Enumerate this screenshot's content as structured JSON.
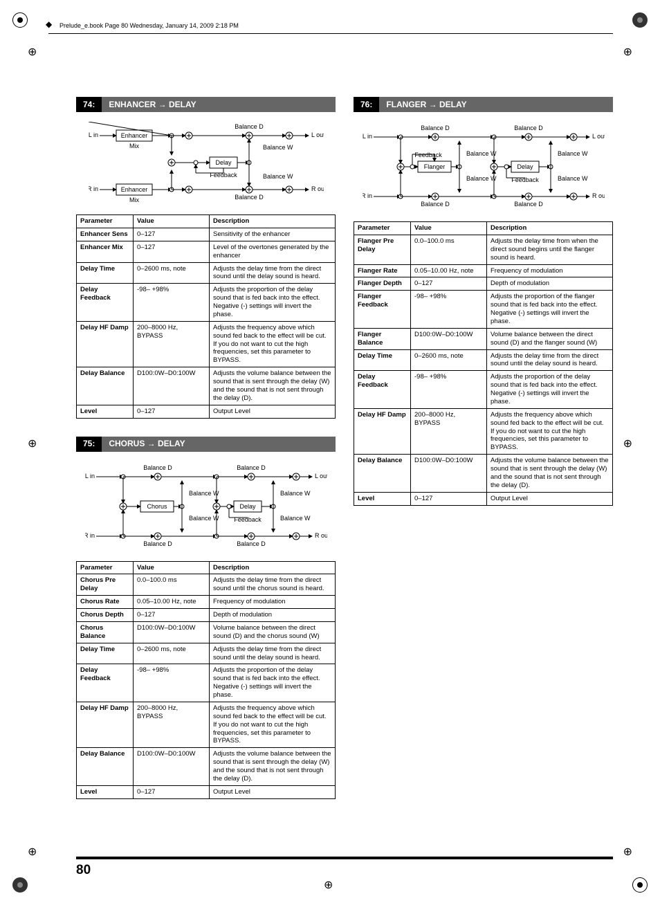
{
  "runhead": "Prelude_e.book  Page 80  Wednesday, January 14, 2009  2:18 PM",
  "pageNumber": "80",
  "headers": {
    "param": "Parameter",
    "value": "Value",
    "desc": "Description"
  },
  "labels": {
    "Lin": "L in",
    "Rin": "R in",
    "Lout": "L out",
    "Rout": "R out",
    "Enhancer": "Enhancer",
    "Mix": "Mix",
    "Delay": "Delay",
    "Feedback": "Feedback",
    "BalanceD": "Balance D",
    "BalanceW": "Balance W",
    "Chorus": "Chorus",
    "Flanger": "Flanger"
  },
  "sections": [
    {
      "num": "74:",
      "title": "ENHANCER → DELAY",
      "diagram": "enh",
      "rows": [
        {
          "p": "Enhancer Sens",
          "v": "0–127",
          "d": "Sensitivity of the enhancer"
        },
        {
          "p": "Enhancer Mix",
          "v": "0–127",
          "d": "Level of the overtones generated by the enhancer"
        },
        {
          "p": "Delay Time",
          "v": "0–2600 ms, note",
          "d": "Adjusts the delay time from the direct sound until the delay sound is heard."
        },
        {
          "p": "Delay Feedback",
          "v": "-98– +98%",
          "d": "Adjusts the proportion of the delay sound that is fed back into the effect. Negative (-) settings will invert the phase."
        },
        {
          "p": "Delay HF Damp",
          "v": "200–8000 Hz, BYPASS",
          "d": "Adjusts the frequency above which sound fed back to the effect will be cut. If you do not want to cut the high frequencies, set this parameter to BYPASS."
        },
        {
          "p": "Delay Balance",
          "v": "D100:0W–D0:100W",
          "d": "Adjusts the volume balance between the sound that is sent through the delay (W) and the sound that is not sent through the delay (D)."
        },
        {
          "p": "Level",
          "v": "0–127",
          "d": "Output Level"
        }
      ]
    },
    {
      "num": "75:",
      "title": "CHORUS → DELAY",
      "diagram": "cho",
      "rows": [
        {
          "p": "Chorus Pre Delay",
          "v": "0.0–100.0 ms",
          "d": "Adjusts the delay time from the direct sound until the chorus sound is heard."
        },
        {
          "p": "Chorus Rate",
          "v": "0.05–10.00 Hz, note",
          "d": "Frequency of modulation"
        },
        {
          "p": "Chorus Depth",
          "v": "0–127",
          "d": "Depth of modulation"
        },
        {
          "p": "Chorus Balance",
          "v": "D100:0W–D0:100W",
          "d": "Volume balance between the direct sound (D) and the chorus sound (W)"
        },
        {
          "p": "Delay Time",
          "v": "0–2600 ms, note",
          "d": "Adjusts the delay time from the direct sound until the delay sound is heard."
        },
        {
          "p": "Delay Feedback",
          "v": "-98– +98%",
          "d": "Adjusts the proportion of the delay sound that is fed back into the effect. Negative (-) settings will invert the phase."
        },
        {
          "p": "Delay HF Damp",
          "v": "200–8000 Hz, BYPASS",
          "d": "Adjusts the frequency above which sound fed back to the effect will be cut. If you do not want to cut the high frequencies, set this parameter to BYPASS."
        },
        {
          "p": "Delay Balance",
          "v": "D100:0W–D0:100W",
          "d": "Adjusts the volume balance between the sound that is sent through the delay (W) and the sound that is not sent through the delay (D)."
        },
        {
          "p": "Level",
          "v": "0–127",
          "d": "Output Level"
        }
      ]
    },
    {
      "num": "76:",
      "title": "FLANGER → DELAY",
      "diagram": "fla",
      "rows": [
        {
          "p": "Flanger Pre Delay",
          "v": "0.0–100.0 ms",
          "d": "Adjusts the delay time from when the direct sound begins until the flanger sound is heard."
        },
        {
          "p": "Flanger Rate",
          "v": "0.05–10.00 Hz, note",
          "d": "Frequency of modulation"
        },
        {
          "p": "Flanger Depth",
          "v": "0–127",
          "d": "Depth of modulation"
        },
        {
          "p": "Flanger Feedback",
          "v": "-98– +98%",
          "d": "Adjusts the proportion of the flanger sound that is fed back into the effect. Negative (-) settings will invert the phase."
        },
        {
          "p": "Flanger Balance",
          "v": "D100:0W–D0:100W",
          "d": "Volume balance between the direct sound (D) and the flanger sound (W)"
        },
        {
          "p": "Delay Time",
          "v": "0–2600 ms, note",
          "d": "Adjusts the delay time from the direct sound until the delay sound is heard."
        },
        {
          "p": "Delay Feedback",
          "v": "-98– +98%",
          "d": "Adjusts the proportion of the delay sound that is fed back into the effect. Negative (-) settings will invert the phase."
        },
        {
          "p": "Delay HF Damp",
          "v": "200–8000 Hz, BYPASS",
          "d": "Adjusts the frequency above which sound fed back to the effect will be cut. If you do not want to cut the high frequencies, set this parameter to BYPASS."
        },
        {
          "p": "Delay Balance",
          "v": "D100:0W–D0:100W",
          "d": "Adjusts the volume balance between the sound that is sent through the delay (W) and the sound that is not sent through the delay (D)."
        },
        {
          "p": "Level",
          "v": "0–127",
          "d": "Output Level"
        }
      ]
    }
  ]
}
